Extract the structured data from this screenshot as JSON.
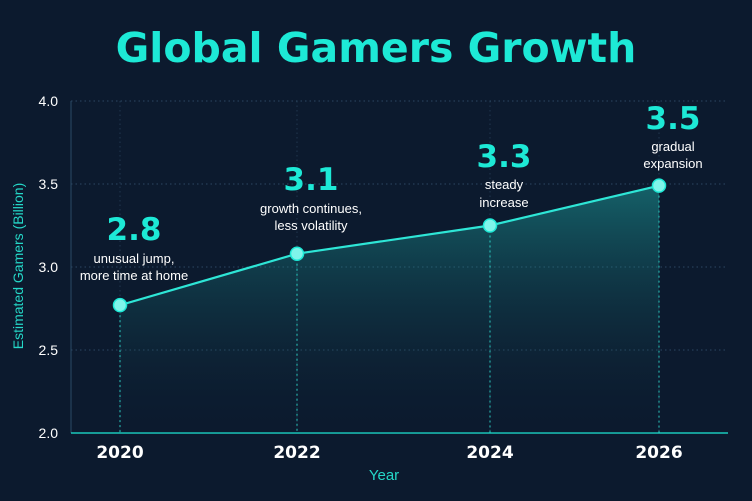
{
  "chart_data": {
    "type": "area",
    "title": "Global Gamers Growth",
    "xlabel": "Year",
    "ylabel": "Estimated Gamers (Billion)",
    "ylim": [
      2.0,
      4.0
    ],
    "yticks": [
      "2.0",
      "2.5",
      "3.0",
      "3.5",
      "4.0"
    ],
    "categories": [
      "2020",
      "2022",
      "2024",
      "2026"
    ],
    "values": [
      2.77,
      3.08,
      3.25,
      3.49
    ],
    "value_labels": [
      "2.8",
      "3.1",
      "3.3",
      "3.5"
    ],
    "annotations": [
      [
        "unusual jump,",
        "more time at home"
      ],
      [
        "growth continues,",
        "less volatility"
      ],
      [
        "steady",
        "increase"
      ],
      [
        "gradual",
        "expansion"
      ]
    ],
    "grid": true,
    "colors": {
      "background": "#0c1a2e",
      "accent": "#1de9d6",
      "line": "#2ee6d6",
      "text": "#ffffff",
      "axis_label": "#25d8c8"
    }
  }
}
